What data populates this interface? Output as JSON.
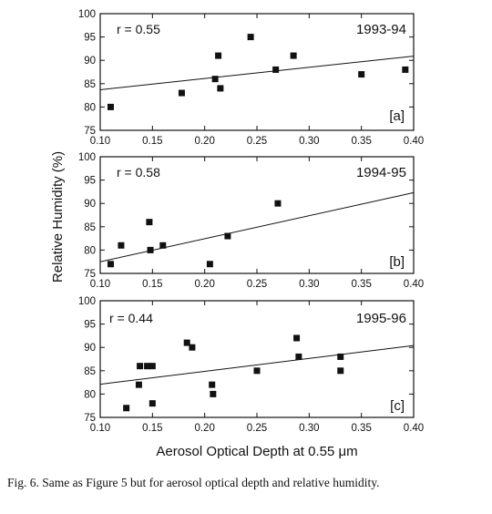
{
  "figure": {
    "caption": "Fig. 6. Same as Figure 5 but for aerosol optical depth and relative humidity."
  },
  "chart_data": [
    {
      "type": "scatter",
      "panel_label": "[a]",
      "period": "1993-94",
      "correlation": "r = 0.55",
      "xlabel": "",
      "ylabel": "",
      "xlim": [
        0.1,
        0.4
      ],
      "ylim": [
        75,
        100
      ],
      "x_ticks": [
        "0.10",
        "0.15",
        "0.20",
        "0.25",
        "0.30",
        "0.35",
        "0.40"
      ],
      "y_ticks": [
        "75",
        "80",
        "85",
        "90",
        "95",
        "100"
      ],
      "points": [
        {
          "x": 0.11,
          "y": 80
        },
        {
          "x": 0.178,
          "y": 83
        },
        {
          "x": 0.21,
          "y": 86
        },
        {
          "x": 0.213,
          "y": 91
        },
        {
          "x": 0.215,
          "y": 84
        },
        {
          "x": 0.244,
          "y": 95
        },
        {
          "x": 0.268,
          "y": 88
        },
        {
          "x": 0.285,
          "y": 91
        },
        {
          "x": 0.35,
          "y": 87
        },
        {
          "x": 0.392,
          "y": 88
        }
      ],
      "fit_line": {
        "x": [
          0.1,
          0.4
        ],
        "y": [
          83.7,
          90.9
        ]
      },
      "grid": false
    },
    {
      "type": "scatter",
      "panel_label": "[b]",
      "period": "1994-95",
      "correlation": "r = 0.58",
      "xlabel": "",
      "ylabel": "Relative Humidity (%)",
      "xlim": [
        0.1,
        0.4
      ],
      "ylim": [
        75,
        100
      ],
      "x_ticks": [
        "0.10",
        "0.15",
        "0.20",
        "0.25",
        "0.30",
        "0.35",
        "0.40"
      ],
      "y_ticks": [
        "75",
        "80",
        "85",
        "90",
        "95",
        "100"
      ],
      "points": [
        {
          "x": 0.11,
          "y": 77
        },
        {
          "x": 0.12,
          "y": 81
        },
        {
          "x": 0.147,
          "y": 86
        },
        {
          "x": 0.148,
          "y": 80
        },
        {
          "x": 0.16,
          "y": 81
        },
        {
          "x": 0.205,
          "y": 77
        },
        {
          "x": 0.222,
          "y": 83
        },
        {
          "x": 0.27,
          "y": 90
        }
      ],
      "fit_line": {
        "x": [
          0.1,
          0.4
        ],
        "y": [
          77.5,
          92.3
        ]
      },
      "grid": false
    },
    {
      "type": "scatter",
      "panel_label": "[c]",
      "period": "1995-96",
      "correlation": "r = 0.44",
      "xlabel": "Aerosol Optical Depth at 0.55 μm",
      "ylabel": "",
      "xlim": [
        0.1,
        0.4
      ],
      "ylim": [
        75,
        100
      ],
      "x_ticks": [
        "0.10",
        "0.15",
        "0.20",
        "0.25",
        "0.30",
        "0.35",
        "0.40"
      ],
      "y_ticks": [
        "75",
        "80",
        "85",
        "90",
        "95",
        "100"
      ],
      "points": [
        {
          "x": 0.125,
          "y": 77
        },
        {
          "x": 0.137,
          "y": 82
        },
        {
          "x": 0.138,
          "y": 86
        },
        {
          "x": 0.145,
          "y": 86
        },
        {
          "x": 0.15,
          "y": 86
        },
        {
          "x": 0.15,
          "y": 78
        },
        {
          "x": 0.183,
          "y": 91
        },
        {
          "x": 0.188,
          "y": 90
        },
        {
          "x": 0.207,
          "y": 82
        },
        {
          "x": 0.208,
          "y": 80
        },
        {
          "x": 0.25,
          "y": 85
        },
        {
          "x": 0.288,
          "y": 92
        },
        {
          "x": 0.29,
          "y": 88
        },
        {
          "x": 0.33,
          "y": 88
        },
        {
          "x": 0.33,
          "y": 85
        }
      ],
      "fit_line": {
        "x": [
          0.1,
          0.4
        ],
        "y": [
          82.1,
          90.4
        ]
      },
      "grid": false
    }
  ]
}
